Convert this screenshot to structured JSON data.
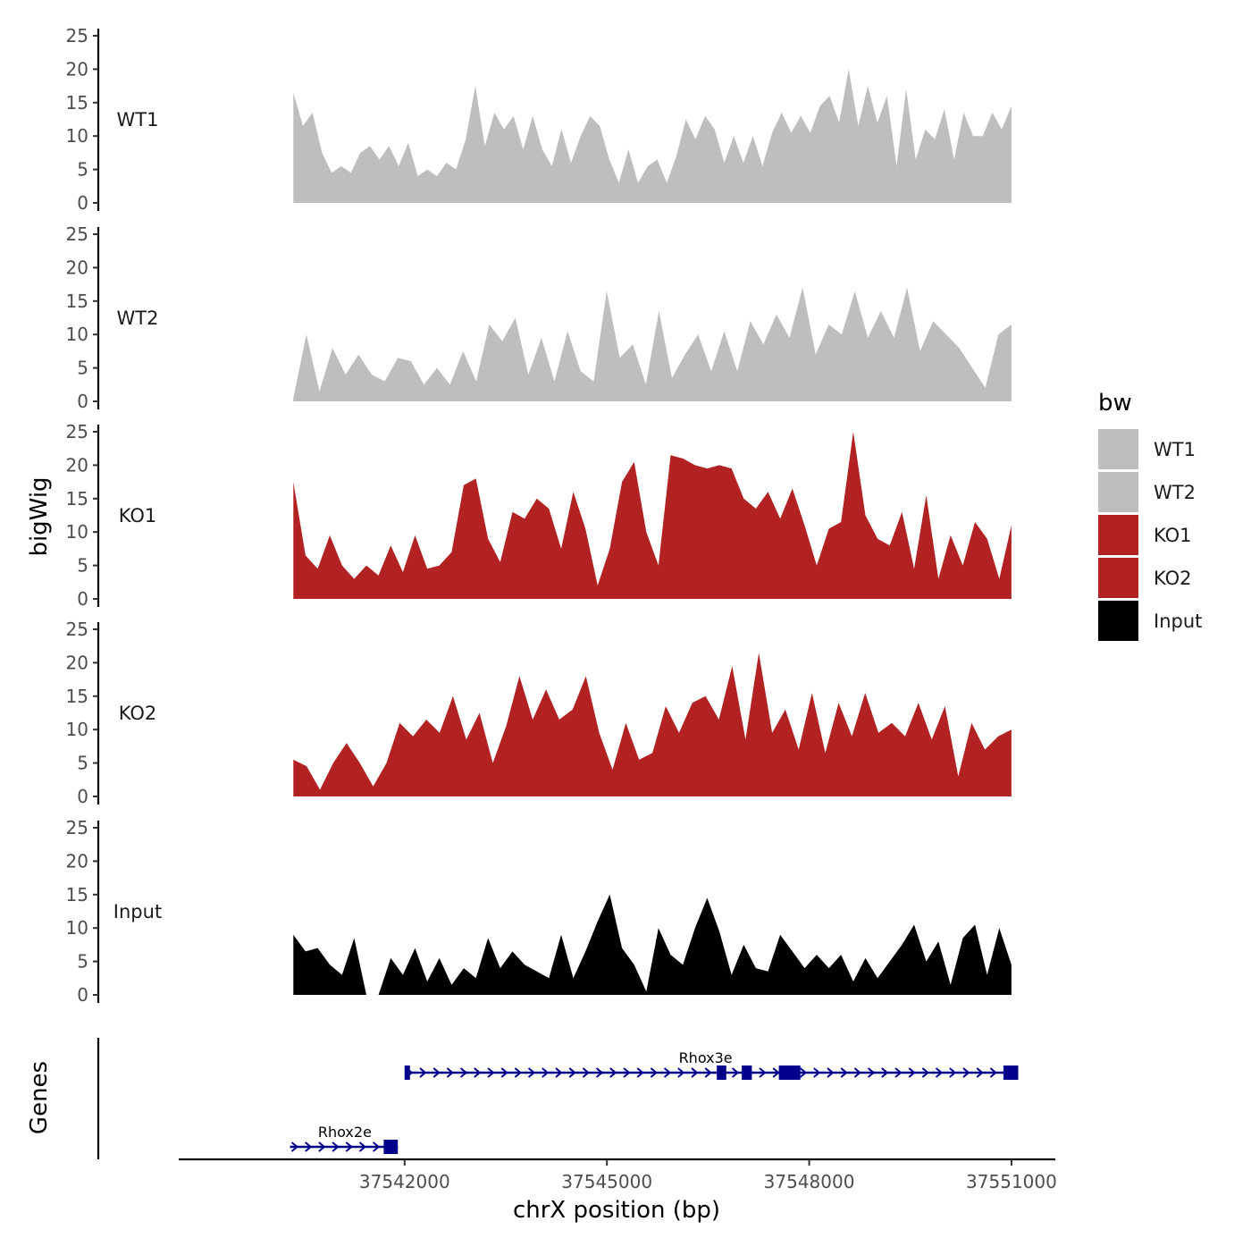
{
  "chart_data": {
    "type": "area",
    "title": "",
    "ylabel": "bigWig",
    "xlabel": "chrX position (bp)",
    "genes_label": "Genes",
    "ylim": [
      0,
      25
    ],
    "yticks": [
      0,
      5,
      10,
      15,
      20,
      25
    ],
    "xlim": [
      37538650,
      37551650
    ],
    "xticks": [
      37542000,
      37545000,
      37548000,
      37551000
    ],
    "xtick_labels": [
      "37542000",
      "37545000",
      "37548000",
      "37551000"
    ],
    "legend": {
      "title": "bw",
      "position": "right",
      "entries": [
        {
          "label": "WT1",
          "color": "#bebebe"
        },
        {
          "label": "WT2",
          "color": "#bebebe"
        },
        {
          "label": "KO1",
          "color": "#b22222"
        },
        {
          "label": "KO2",
          "color": "#b22222"
        },
        {
          "label": "Input",
          "color": "#000000"
        }
      ]
    },
    "series": [
      {
        "name": "WT1",
        "color": "#bebebe",
        "x_start": 37540350,
        "x_end": 37551000,
        "values": [
          16.5,
          11.5,
          13.5,
          7.5,
          4.5,
          5.5,
          4.5,
          7.5,
          8.5,
          6.5,
          8.5,
          5.5,
          9.0,
          4.0,
          5.0,
          4.0,
          6.0,
          5.0,
          9.5,
          17.5,
          8.5,
          13.5,
          11.0,
          13.0,
          8.0,
          13.0,
          8.0,
          5.5,
          11.0,
          6.0,
          10.0,
          13.0,
          11.5,
          6.5,
          3.0,
          8.0,
          3.0,
          5.5,
          6.5,
          3.0,
          7.0,
          12.5,
          9.5,
          13.0,
          11.0,
          6.0,
          10.0,
          6.0,
          10.0,
          5.5,
          10.5,
          13.5,
          10.5,
          13.0,
          10.5,
          14.5,
          16.0,
          12.0,
          20.0,
          11.5,
          17.5,
          12.0,
          16.0,
          5.5,
          17.0,
          6.5,
          11.0,
          9.5,
          14.0,
          6.5,
          13.5,
          10.0,
          10.0,
          13.5,
          11.0,
          14.5
        ]
      },
      {
        "name": "WT2",
        "color": "#bebebe",
        "x_start": 37540350,
        "x_end": 37551000,
        "values": [
          0.5,
          10.0,
          1.5,
          8.0,
          4.0,
          7.0,
          4.0,
          3.0,
          6.5,
          6.0,
          2.5,
          5.0,
          2.5,
          7.5,
          3.0,
          11.5,
          9.0,
          12.5,
          4.0,
          9.5,
          3.0,
          10.5,
          4.5,
          3.0,
          16.5,
          6.5,
          8.5,
          2.5,
          13.5,
          3.5,
          7.0,
          10.0,
          4.5,
          10.5,
          4.5,
          12.0,
          8.5,
          13.0,
          9.5,
          17.0,
          7.0,
          11.5,
          10.0,
          16.5,
          9.5,
          13.5,
          9.5,
          17.0,
          7.5,
          12.0,
          10.0,
          8.0,
          5.0,
          2.0,
          10.0,
          11.5
        ]
      },
      {
        "name": "KO1",
        "color": "#b22222",
        "x_start": 37540350,
        "x_end": 37551000,
        "values": [
          17.5,
          6.5,
          4.5,
          9.5,
          5.0,
          3.0,
          5.0,
          3.5,
          8.0,
          4.0,
          9.5,
          4.5,
          5.0,
          7.0,
          17.0,
          18.0,
          9.0,
          5.5,
          13.0,
          12.0,
          15.0,
          13.5,
          7.5,
          16.0,
          10.5,
          2.0,
          7.5,
          17.5,
          20.5,
          10.0,
          5.0,
          21.5,
          21.0,
          20.0,
          19.5,
          20.0,
          19.5,
          15.0,
          13.5,
          16.0,
          12.0,
          16.5,
          11.0,
          5.0,
          10.5,
          11.5,
          25.0,
          12.5,
          9.0,
          8.0,
          13.0,
          4.5,
          15.5,
          3.0,
          9.5,
          5.0,
          11.5,
          9.0,
          3.0,
          11.0
        ]
      },
      {
        "name": "KO2",
        "color": "#b22222",
        "x_start": 37540350,
        "x_end": 37551000,
        "values": [
          5.5,
          4.5,
          1.0,
          5.0,
          8.0,
          5.0,
          1.5,
          5.0,
          11.0,
          9.0,
          11.5,
          9.5,
          15.0,
          8.5,
          12.5,
          5.0,
          10.5,
          18.0,
          11.5,
          16.0,
          11.5,
          13.0,
          18.0,
          9.5,
          4.0,
          11.0,
          5.5,
          6.5,
          13.5,
          9.5,
          14.0,
          15.0,
          11.5,
          19.5,
          8.5,
          21.5,
          9.5,
          13.0,
          7.0,
          15.5,
          6.5,
          14.0,
          9.0,
          15.5,
          9.5,
          11.0,
          9.0,
          14.0,
          8.5,
          13.5,
          3.0,
          11.0,
          7.0,
          9.0,
          10.0
        ]
      },
      {
        "name": "Input",
        "color": "#000000",
        "x_start": 37540350,
        "x_end": 37551000,
        "values": [
          9.0,
          6.5,
          7.0,
          4.5,
          3.0,
          8.5,
          0.0,
          0.0,
          5.5,
          3.0,
          7.0,
          2.0,
          5.5,
          1.5,
          4.0,
          2.5,
          8.5,
          4.0,
          6.5,
          4.5,
          3.5,
          2.5,
          9.0,
          2.5,
          6.5,
          11.0,
          15.0,
          7.0,
          4.5,
          0.5,
          10.0,
          6.0,
          4.5,
          10.0,
          14.5,
          9.5,
          3.0,
          7.5,
          4.0,
          3.5,
          9.0,
          6.5,
          4.0,
          6.0,
          4.0,
          6.0,
          2.0,
          5.5,
          2.5,
          5.0,
          7.5,
          10.5,
          5.0,
          8.0,
          1.5,
          8.5,
          10.5,
          3.0,
          10.0,
          4.5
        ]
      }
    ],
    "genes": [
      {
        "name": "Rhox3e",
        "strand": "+",
        "start": 37542000,
        "end": 37551050,
        "exons": [
          [
            37542000,
            37542080
          ],
          [
            37546630,
            37546770
          ],
          [
            37547000,
            37547150
          ],
          [
            37547550,
            37547870
          ],
          [
            37550880,
            37551100
          ]
        ]
      },
      {
        "name": "Rhox2e",
        "strand": "+",
        "start": 37540300,
        "end": 37541900,
        "exons": [
          [
            37541690,
            37541900
          ]
        ]
      }
    ]
  }
}
